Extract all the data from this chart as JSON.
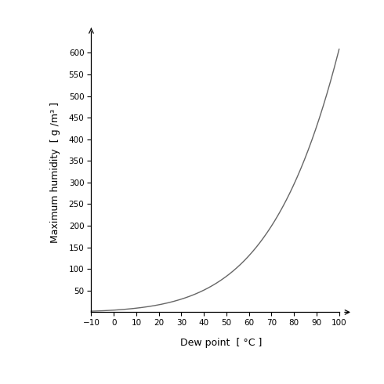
{
  "xlabel": "Dew point  [ °C ]",
  "ylabel": "Maximum humidity  [ g /m³ ]",
  "x_min": -10,
  "x_max": 100,
  "y_min": 0,
  "y_max": 650,
  "x_ticks": [
    -10,
    0,
    10,
    20,
    30,
    40,
    50,
    60,
    70,
    80,
    90,
    100
  ],
  "y_ticks": [
    50,
    100,
    150,
    200,
    250,
    300,
    350,
    400,
    450,
    500,
    550,
    600
  ],
  "line_color": "#666666",
  "line_width": 1.0,
  "background_color": "#ffffff"
}
